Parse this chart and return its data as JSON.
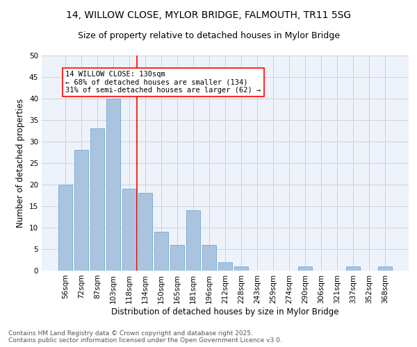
{
  "title": "14, WILLOW CLOSE, MYLOR BRIDGE, FALMOUTH, TR11 5SG",
  "subtitle": "Size of property relative to detached houses in Mylor Bridge",
  "xlabel": "Distribution of detached houses by size in Mylor Bridge",
  "ylabel": "Number of detached properties",
  "categories": [
    "56sqm",
    "72sqm",
    "87sqm",
    "103sqm",
    "118sqm",
    "134sqm",
    "150sqm",
    "165sqm",
    "181sqm",
    "196sqm",
    "212sqm",
    "228sqm",
    "243sqm",
    "259sqm",
    "274sqm",
    "290sqm",
    "306sqm",
    "321sqm",
    "337sqm",
    "352sqm",
    "368sqm"
  ],
  "values": [
    20,
    28,
    33,
    40,
    19,
    18,
    9,
    6,
    14,
    6,
    2,
    1,
    0,
    0,
    0,
    1,
    0,
    0,
    1,
    0,
    1
  ],
  "bar_color": "#aac4e0",
  "bar_edge_color": "#7bafd4",
  "grid_color": "#cccccc",
  "background_color": "#eef2fa",
  "property_line_x": 4.5,
  "property_line_color": "red",
  "annotation_text": "14 WILLOW CLOSE: 130sqm\n← 68% of detached houses are smaller (134)\n31% of semi-detached houses are larger (62) →",
  "annotation_box_color": "red",
  "ylim": [
    0,
    50
  ],
  "yticks": [
    0,
    5,
    10,
    15,
    20,
    25,
    30,
    35,
    40,
    45,
    50
  ],
  "footer_line1": "Contains HM Land Registry data © Crown copyright and database right 2025.",
  "footer_line2": "Contains public sector information licensed under the Open Government Licence v3.0.",
  "title_fontsize": 10,
  "subtitle_fontsize": 9,
  "xlabel_fontsize": 8.5,
  "ylabel_fontsize": 8.5,
  "tick_fontsize": 7.5,
  "annotation_fontsize": 7.5,
  "footer_fontsize": 6.5
}
